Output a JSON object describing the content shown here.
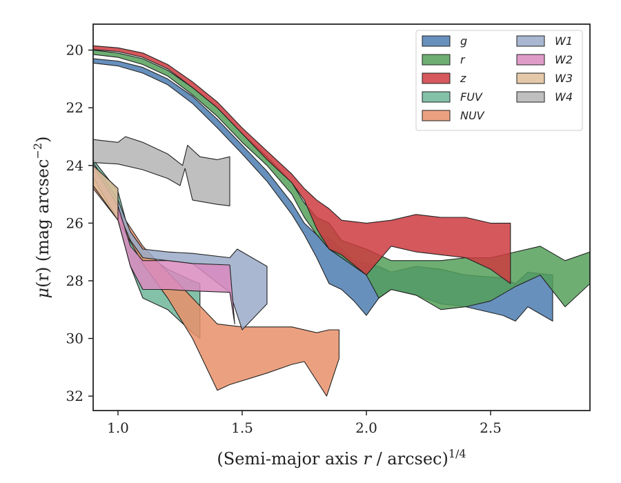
{
  "chart_data": {
    "type": "area",
    "xlabel_text": "(Semi-major axis ",
    "xlabel_var": "r",
    "xlabel_unit": " / arcsec)",
    "xlabel_exp": "1/4",
    "ylabel_mu": "μ",
    "ylabel_rest": "(r) (mag arcsec",
    "ylabel_exp": "−2",
    "ylabel_close": ")",
    "xlim": [
      0.9,
      2.9
    ],
    "ylim": [
      19.1,
      32.5
    ],
    "y_inverted": true,
    "x_ticks": [
      1.0,
      1.5,
      2.0,
      2.5
    ],
    "x_tick_labels": [
      "1.0",
      "1.5",
      "2.0",
      "2.5"
    ],
    "y_ticks": [
      20,
      22,
      24,
      26,
      28,
      30,
      32
    ],
    "y_tick_labels": [
      "20",
      "22",
      "24",
      "26",
      "28",
      "30",
      "32"
    ],
    "legend_position": "top-right",
    "series": [
      {
        "name": "g",
        "color": "#4c7db0",
        "upper": [
          [
            0.9,
            20.3
          ],
          [
            1.0,
            20.38
          ],
          [
            1.1,
            20.6
          ],
          [
            1.2,
            21.0
          ],
          [
            1.3,
            21.6
          ],
          [
            1.4,
            22.4
          ],
          [
            1.5,
            23.3
          ],
          [
            1.6,
            24.2
          ],
          [
            1.7,
            25.3
          ],
          [
            1.75,
            26.0
          ],
          [
            1.8,
            26.4
          ],
          [
            1.85,
            26.5
          ],
          [
            1.9,
            26.9
          ],
          [
            1.95,
            27.3
          ],
          [
            2.0,
            27.4
          ],
          [
            2.05,
            27.5
          ],
          [
            2.1,
            27.7
          ],
          [
            2.2,
            27.5
          ],
          [
            2.3,
            27.6
          ],
          [
            2.4,
            27.8
          ],
          [
            2.55,
            27.9
          ],
          [
            2.6,
            28.1
          ],
          [
            2.65,
            27.7
          ],
          [
            2.75,
            27.8
          ]
        ],
        "lower": [
          [
            0.9,
            20.45
          ],
          [
            1.0,
            20.55
          ],
          [
            1.1,
            20.8
          ],
          [
            1.2,
            21.2
          ],
          [
            1.3,
            21.85
          ],
          [
            1.4,
            22.7
          ],
          [
            1.5,
            23.6
          ],
          [
            1.6,
            24.55
          ],
          [
            1.7,
            25.7
          ],
          [
            1.75,
            26.4
          ],
          [
            1.8,
            27.2
          ],
          [
            1.85,
            28.1
          ],
          [
            1.9,
            28.3
          ],
          [
            1.95,
            28.7
          ],
          [
            2.0,
            29.2
          ],
          [
            2.05,
            28.6
          ],
          [
            2.1,
            28.3
          ],
          [
            2.2,
            28.5
          ],
          [
            2.3,
            28.8
          ],
          [
            2.4,
            28.9
          ],
          [
            2.55,
            29.2
          ],
          [
            2.6,
            29.4
          ],
          [
            2.65,
            28.9
          ],
          [
            2.75,
            29.4
          ]
        ]
      },
      {
        "name": "r",
        "color": "#55a05a",
        "upper": [
          [
            0.9,
            20.0
          ],
          [
            1.0,
            20.1
          ],
          [
            1.1,
            20.3
          ],
          [
            1.2,
            20.7
          ],
          [
            1.3,
            21.3
          ],
          [
            1.4,
            22.0
          ],
          [
            1.5,
            22.9
          ],
          [
            1.6,
            23.7
          ],
          [
            1.7,
            24.6
          ],
          [
            1.75,
            25.3
          ],
          [
            1.8,
            25.8
          ],
          [
            1.85,
            26.0
          ],
          [
            1.9,
            26.6
          ],
          [
            2.0,
            26.9
          ],
          [
            2.1,
            27.3
          ],
          [
            2.2,
            27.3
          ],
          [
            2.3,
            27.3
          ],
          [
            2.4,
            27.2
          ],
          [
            2.5,
            27.2
          ],
          [
            2.6,
            27.0
          ],
          [
            2.7,
            26.8
          ],
          [
            2.8,
            27.3
          ],
          [
            2.9,
            27.0
          ]
        ],
        "lower": [
          [
            0.9,
            20.15
          ],
          [
            1.0,
            20.25
          ],
          [
            1.1,
            20.5
          ],
          [
            1.2,
            20.9
          ],
          [
            1.3,
            21.55
          ],
          [
            1.4,
            22.3
          ],
          [
            1.5,
            23.2
          ],
          [
            1.6,
            24.0
          ],
          [
            1.7,
            25.0
          ],
          [
            1.75,
            25.8
          ],
          [
            1.8,
            26.4
          ],
          [
            1.85,
            26.9
          ],
          [
            1.9,
            27.2
          ],
          [
            2.0,
            27.8
          ],
          [
            2.05,
            28.6
          ],
          [
            2.1,
            28.3
          ],
          [
            2.2,
            28.5
          ],
          [
            2.3,
            29.0
          ],
          [
            2.4,
            28.9
          ],
          [
            2.5,
            28.7
          ],
          [
            2.6,
            28.2
          ],
          [
            2.7,
            27.8
          ],
          [
            2.8,
            28.9
          ],
          [
            2.9,
            28.1
          ]
        ]
      },
      {
        "name": "z",
        "color": "#cc3b3f",
        "upper": [
          [
            0.9,
            19.85
          ],
          [
            1.0,
            19.92
          ],
          [
            1.1,
            20.1
          ],
          [
            1.2,
            20.5
          ],
          [
            1.3,
            21.1
          ],
          [
            1.4,
            21.8
          ],
          [
            1.5,
            22.7
          ],
          [
            1.6,
            23.5
          ],
          [
            1.7,
            24.3
          ],
          [
            1.75,
            24.8
          ],
          [
            1.8,
            25.2
          ],
          [
            1.85,
            25.5
          ],
          [
            1.9,
            25.9
          ],
          [
            2.0,
            26.0
          ],
          [
            2.1,
            25.9
          ],
          [
            2.2,
            25.7
          ],
          [
            2.3,
            25.8
          ],
          [
            2.4,
            25.8
          ],
          [
            2.5,
            26.0
          ],
          [
            2.58,
            26.0
          ]
        ],
        "lower": [
          [
            0.9,
            19.98
          ],
          [
            1.0,
            20.05
          ],
          [
            1.1,
            20.25
          ],
          [
            1.2,
            20.65
          ],
          [
            1.3,
            21.3
          ],
          [
            1.4,
            22.0
          ],
          [
            1.5,
            22.9
          ],
          [
            1.6,
            23.8
          ],
          [
            1.7,
            24.6
          ],
          [
            1.75,
            25.2
          ],
          [
            1.8,
            26.2
          ],
          [
            1.85,
            26.9
          ],
          [
            1.9,
            27.1
          ],
          [
            2.0,
            27.8
          ],
          [
            2.1,
            26.8
          ],
          [
            2.2,
            27.0
          ],
          [
            2.3,
            27.1
          ],
          [
            2.4,
            27.2
          ],
          [
            2.5,
            27.6
          ],
          [
            2.58,
            28.1
          ]
        ]
      },
      {
        "name": "FUV",
        "color": "#6fb69a",
        "upper": [
          [
            0.9,
            23.8
          ],
          [
            1.0,
            24.9
          ],
          [
            1.05,
            26.5
          ],
          [
            1.1,
            27.0
          ],
          [
            1.2,
            27.6
          ],
          [
            1.3,
            28.0
          ],
          [
            1.33,
            28.1
          ]
        ],
        "lower": [
          [
            0.9,
            24.2
          ],
          [
            1.0,
            25.9
          ],
          [
            1.05,
            27.5
          ],
          [
            1.1,
            28.6
          ],
          [
            1.2,
            29.0
          ],
          [
            1.3,
            29.8
          ],
          [
            1.33,
            30.0
          ]
        ]
      },
      {
        "name": "NUV",
        "color": "#e8906a",
        "upper": [
          [
            0.9,
            24.4
          ],
          [
            1.0,
            25.5
          ],
          [
            1.1,
            26.8
          ],
          [
            1.2,
            27.7
          ],
          [
            1.3,
            28.6
          ],
          [
            1.4,
            29.5
          ],
          [
            1.5,
            29.6
          ],
          [
            1.6,
            29.6
          ],
          [
            1.7,
            29.6
          ],
          [
            1.8,
            29.8
          ],
          [
            1.85,
            29.7
          ],
          [
            1.89,
            29.7
          ]
        ],
        "lower": [
          [
            0.9,
            24.8
          ],
          [
            1.0,
            25.9
          ],
          [
            1.1,
            27.4
          ],
          [
            1.2,
            28.6
          ],
          [
            1.3,
            30.0
          ],
          [
            1.4,
            31.8
          ],
          [
            1.45,
            31.6
          ],
          [
            1.6,
            31.2
          ],
          [
            1.7,
            30.9
          ],
          [
            1.75,
            30.8
          ],
          [
            1.84,
            32.0
          ],
          [
            1.89,
            30.7
          ]
        ]
      },
      {
        "name": "W1",
        "color": "#9aaac8",
        "upper": [
          [
            0.9,
            23.9
          ],
          [
            1.0,
            25.2
          ],
          [
            1.05,
            26.3
          ],
          [
            1.1,
            26.9
          ],
          [
            1.2,
            27.0
          ],
          [
            1.3,
            27.05
          ],
          [
            1.45,
            27.2
          ],
          [
            1.48,
            26.9
          ],
          [
            1.6,
            27.5
          ]
        ],
        "lower": [
          [
            0.9,
            24.1
          ],
          [
            1.0,
            25.6
          ],
          [
            1.05,
            26.6
          ],
          [
            1.1,
            27.2
          ],
          [
            1.2,
            27.3
          ],
          [
            1.3,
            27.4
          ],
          [
            1.45,
            28.4
          ],
          [
            1.5,
            29.7
          ],
          [
            1.6,
            28.8
          ]
        ]
      },
      {
        "name": "W2",
        "color": "#d98bc0",
        "upper": [
          [
            0.9,
            24.0
          ],
          [
            1.0,
            25.4
          ],
          [
            1.05,
            26.8
          ],
          [
            1.1,
            27.3
          ],
          [
            1.2,
            27.3
          ],
          [
            1.3,
            27.4
          ],
          [
            1.45,
            27.45
          ]
        ],
        "lower": [
          [
            0.9,
            24.4
          ],
          [
            1.0,
            25.9
          ],
          [
            1.05,
            27.5
          ],
          [
            1.1,
            28.3
          ],
          [
            1.2,
            28.3
          ],
          [
            1.3,
            28.35
          ],
          [
            1.45,
            28.4
          ],
          [
            1.47,
            29.5
          ]
        ]
      },
      {
        "name": "W3",
        "color": "#dfc09a",
        "upper": [
          [
            0.9,
            24.0
          ],
          [
            1.0,
            24.8
          ]
        ],
        "lower": [
          [
            0.9,
            24.7
          ],
          [
            1.0,
            25.9
          ]
        ]
      },
      {
        "name": "W4",
        "color": "#b4b4b4",
        "upper": [
          [
            0.9,
            23.1
          ],
          [
            1.0,
            23.2
          ],
          [
            1.03,
            23.0
          ],
          [
            1.1,
            23.2
          ],
          [
            1.2,
            23.6
          ],
          [
            1.26,
            24.0
          ],
          [
            1.28,
            23.3
          ],
          [
            1.33,
            23.7
          ],
          [
            1.4,
            23.8
          ],
          [
            1.45,
            23.7
          ]
        ],
        "lower": [
          [
            0.9,
            23.9
          ],
          [
            1.0,
            23.95
          ],
          [
            1.1,
            24.15
          ],
          [
            1.2,
            24.45
          ],
          [
            1.25,
            24.7
          ],
          [
            1.27,
            24.1
          ],
          [
            1.3,
            25.2
          ],
          [
            1.4,
            25.35
          ],
          [
            1.45,
            25.4
          ]
        ]
      }
    ]
  }
}
